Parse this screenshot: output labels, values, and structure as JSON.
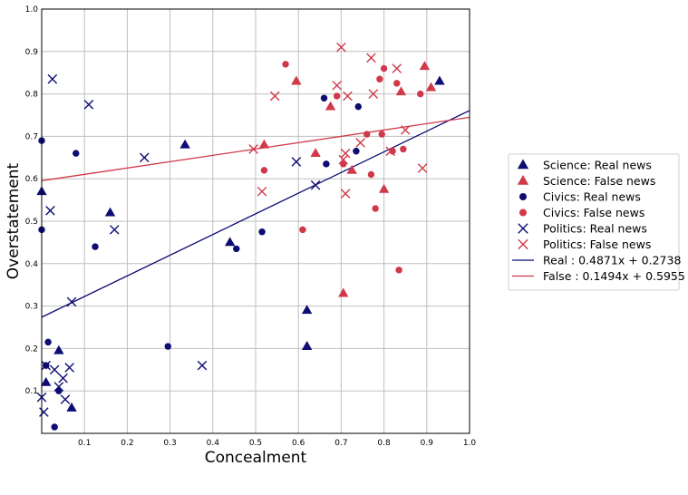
{
  "chart_data": {
    "type": "scatter",
    "xlabel": "Concealment",
    "ylabel": "Overstatement",
    "xlim": [
      0,
      1.0
    ],
    "ylim": [
      0,
      1.0
    ],
    "xticks": [
      "0.1",
      "0.2",
      "0.3",
      "0.4",
      "0.5",
      "0.6",
      "0.7",
      "0.8",
      "0.9",
      "1.0"
    ],
    "yticks": [
      "0.1",
      "0.2",
      "0.3",
      "0.4",
      "0.5",
      "0.6",
      "0.7",
      "0.8",
      "0.9",
      "1.0"
    ],
    "grid": true,
    "legend_position": "outside-right",
    "colors": {
      "real": "#0d0d73",
      "false": "#d1394a"
    },
    "series": [
      {
        "name": "Science: Real news",
        "marker": "triangle",
        "group": "real",
        "points": [
          [
            0.0,
            0.57
          ],
          [
            0.01,
            0.12
          ],
          [
            0.04,
            0.195
          ],
          [
            0.07,
            0.06
          ],
          [
            0.16,
            0.52
          ],
          [
            0.335,
            0.68
          ],
          [
            0.44,
            0.45
          ],
          [
            0.62,
            0.29
          ],
          [
            0.62,
            0.205
          ],
          [
            0.93,
            0.83
          ]
        ]
      },
      {
        "name": "Science: False news",
        "marker": "triangle",
        "group": "false",
        "points": [
          [
            0.52,
            0.68
          ],
          [
            0.595,
            0.83
          ],
          [
            0.64,
            0.66
          ],
          [
            0.675,
            0.77
          ],
          [
            0.705,
            0.33
          ],
          [
            0.725,
            0.62
          ],
          [
            0.8,
            0.575
          ],
          [
            0.84,
            0.805
          ],
          [
            0.895,
            0.865
          ],
          [
            0.91,
            0.815
          ]
        ]
      },
      {
        "name": "Civics: Real news",
        "marker": "circle",
        "group": "real",
        "points": [
          [
            0.0,
            0.69
          ],
          [
            0.0,
            0.48
          ],
          [
            0.01,
            0.16
          ],
          [
            0.015,
            0.215
          ],
          [
            0.03,
            0.015
          ],
          [
            0.04,
            0.1
          ],
          [
            0.08,
            0.66
          ],
          [
            0.125,
            0.44
          ],
          [
            0.295,
            0.205
          ],
          [
            0.455,
            0.435
          ],
          [
            0.515,
            0.475
          ],
          [
            0.66,
            0.79
          ],
          [
            0.665,
            0.635
          ],
          [
            0.735,
            0.665
          ],
          [
            0.74,
            0.77
          ]
        ]
      },
      {
        "name": "Civics: False news",
        "marker": "circle",
        "group": "false",
        "points": [
          [
            0.52,
            0.62
          ],
          [
            0.57,
            0.87
          ],
          [
            0.61,
            0.48
          ],
          [
            0.69,
            0.795
          ],
          [
            0.705,
            0.635
          ],
          [
            0.76,
            0.705
          ],
          [
            0.77,
            0.61
          ],
          [
            0.78,
            0.53
          ],
          [
            0.79,
            0.835
          ],
          [
            0.795,
            0.705
          ],
          [
            0.8,
            0.86
          ],
          [
            0.82,
            0.665
          ],
          [
            0.83,
            0.825
          ],
          [
            0.835,
            0.385
          ],
          [
            0.845,
            0.67
          ],
          [
            0.885,
            0.8
          ]
        ]
      },
      {
        "name": "Politics: Real news",
        "marker": "x",
        "group": "real",
        "points": [
          [
            0.0,
            0.085
          ],
          [
            0.005,
            0.05
          ],
          [
            0.01,
            0.16
          ],
          [
            0.02,
            0.525
          ],
          [
            0.025,
            0.835
          ],
          [
            0.03,
            0.15
          ],
          [
            0.04,
            0.11
          ],
          [
            0.05,
            0.13
          ],
          [
            0.055,
            0.08
          ],
          [
            0.065,
            0.155
          ],
          [
            0.07,
            0.31
          ],
          [
            0.11,
            0.775
          ],
          [
            0.17,
            0.48
          ],
          [
            0.24,
            0.65
          ],
          [
            0.375,
            0.16
          ],
          [
            0.595,
            0.64
          ],
          [
            0.64,
            0.585
          ]
        ]
      },
      {
        "name": "Politics: False news",
        "marker": "x",
        "group": "false",
        "points": [
          [
            0.495,
            0.67
          ],
          [
            0.515,
            0.57
          ],
          [
            0.545,
            0.795
          ],
          [
            0.69,
            0.82
          ],
          [
            0.7,
            0.91
          ],
          [
            0.705,
            0.645
          ],
          [
            0.71,
            0.66
          ],
          [
            0.71,
            0.565
          ],
          [
            0.715,
            0.795
          ],
          [
            0.745,
            0.685
          ],
          [
            0.77,
            0.885
          ],
          [
            0.775,
            0.8
          ],
          [
            0.815,
            0.665
          ],
          [
            0.83,
            0.86
          ],
          [
            0.85,
            0.715
          ],
          [
            0.89,
            0.625
          ]
        ]
      }
    ],
    "fit_lines": [
      {
        "name": "Real : 0.4871x + 0.2738",
        "slope": 0.4871,
        "intercept": 0.2738,
        "group": "real"
      },
      {
        "name": "False : 0.1494x + 0.5955",
        "slope": 0.1494,
        "intercept": 0.5955,
        "group": "false"
      }
    ]
  }
}
